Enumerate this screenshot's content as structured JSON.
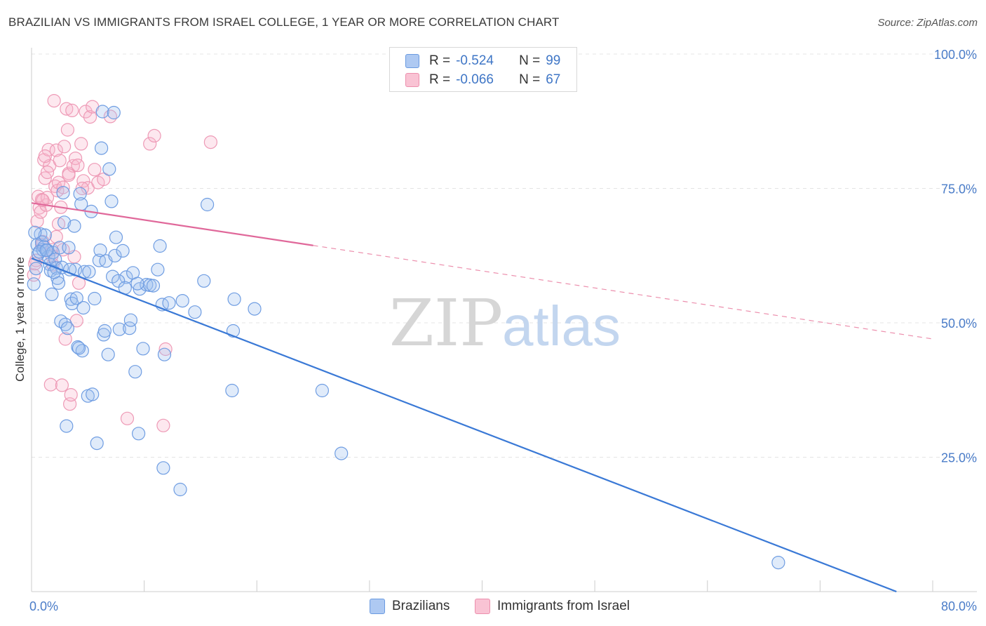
{
  "title": "BRAZILIAN VS IMMIGRANTS FROM ISRAEL COLLEGE, 1 YEAR OR MORE CORRELATION CHART",
  "source": "Source: ZipAtlas.com",
  "watermark": {
    "zip": "ZIP",
    "atlas": "atlas"
  },
  "legend": {
    "r_label": "R =",
    "n_label": "N =",
    "series": [
      {
        "name": "Brazilians",
        "r": "-0.524",
        "n": "99",
        "fill": "#aec9f2",
        "stroke": "#6a9ae0"
      },
      {
        "name": "Immigrants from Israel",
        "r": "-0.066",
        "n": "67",
        "fill": "#f9c3d4",
        "stroke": "#ec8fad"
      }
    ]
  },
  "chart_data": {
    "type": "scatter",
    "title": "BRAZILIAN VS IMMIGRANTS FROM ISRAEL COLLEGE, 1 YEAR OR MORE CORRELATION CHART",
    "xlabel": "",
    "ylabel": "College, 1 year or more",
    "xlim": [
      0,
      80
    ],
    "ylim": [
      0,
      100
    ],
    "x_tick_labels": [
      "0.0%",
      "80.0%"
    ],
    "y_tick_labels": [
      {
        "value": 100,
        "label": "100.0%"
      },
      {
        "value": 75,
        "label": "75.0%"
      },
      {
        "value": 50,
        "label": "50.0%"
      },
      {
        "value": 25,
        "label": "25.0%"
      }
    ],
    "series": [
      {
        "name": "Brazilians",
        "color": "#5b8fde",
        "points": [
          [
            0.2,
            57.2
          ],
          [
            0.4,
            60.1
          ],
          [
            0.5,
            64.5
          ],
          [
            0.6,
            62.8
          ],
          [
            0.8,
            66.5
          ],
          [
            0.9,
            65.0
          ],
          [
            1.0,
            63.6
          ],
          [
            1.1,
            64.1
          ],
          [
            1.2,
            66.3
          ],
          [
            1.4,
            63.5
          ],
          [
            1.5,
            62.3
          ],
          [
            1.6,
            60.9
          ],
          [
            1.7,
            59.7
          ],
          [
            1.8,
            55.3
          ],
          [
            1.9,
            63.1
          ],
          [
            2.1,
            61.8
          ],
          [
            2.2,
            60.2
          ],
          [
            2.3,
            58.3
          ],
          [
            2.4,
            57.4
          ],
          [
            2.5,
            64.0
          ],
          [
            2.6,
            50.3
          ],
          [
            2.7,
            60.3
          ],
          [
            2.8,
            74.2
          ],
          [
            2.9,
            68.7
          ],
          [
            3.0,
            49.7
          ],
          [
            3.1,
            30.8
          ],
          [
            3.2,
            49.0
          ],
          [
            3.3,
            64.0
          ],
          [
            3.5,
            54.4
          ],
          [
            3.6,
            53.6
          ],
          [
            3.8,
            68.0
          ],
          [
            3.9,
            59.9
          ],
          [
            4.0,
            54.6
          ],
          [
            4.1,
            45.5
          ],
          [
            4.3,
            74.0
          ],
          [
            4.4,
            72.1
          ],
          [
            4.5,
            44.8
          ],
          [
            4.6,
            52.8
          ],
          [
            4.7,
            59.5
          ],
          [
            5.0,
            36.4
          ],
          [
            5.3,
            70.7
          ],
          [
            5.4,
            36.7
          ],
          [
            5.6,
            54.5
          ],
          [
            5.8,
            27.6
          ],
          [
            6.0,
            61.6
          ],
          [
            6.2,
            82.5
          ],
          [
            6.3,
            89.3
          ],
          [
            6.4,
            47.8
          ],
          [
            6.5,
            48.5
          ],
          [
            6.6,
            61.5
          ],
          [
            6.8,
            44.1
          ],
          [
            6.9,
            78.6
          ],
          [
            7.1,
            72.6
          ],
          [
            7.2,
            58.6
          ],
          [
            7.3,
            89.1
          ],
          [
            7.4,
            62.5
          ],
          [
            7.5,
            65.9
          ],
          [
            7.8,
            48.8
          ],
          [
            8.1,
            63.4
          ],
          [
            8.4,
            58.5
          ],
          [
            8.7,
            49.0
          ],
          [
            8.8,
            50.5
          ],
          [
            9.0,
            59.3
          ],
          [
            9.2,
            40.9
          ],
          [
            9.5,
            29.4
          ],
          [
            9.6,
            56.3
          ],
          [
            9.9,
            45.2
          ],
          [
            10.2,
            57.1
          ],
          [
            10.5,
            57.0
          ],
          [
            11.2,
            59.9
          ],
          [
            11.4,
            64.3
          ],
          [
            11.6,
            53.4
          ],
          [
            11.7,
            23.0
          ],
          [
            11.8,
            44.1
          ],
          [
            13.2,
            19.0
          ],
          [
            13.4,
            54.1
          ],
          [
            14.5,
            52.0
          ],
          [
            15.3,
            57.8
          ],
          [
            15.6,
            72.0
          ],
          [
            17.8,
            37.4
          ],
          [
            17.9,
            48.5
          ],
          [
            18.0,
            54.4
          ],
          [
            19.8,
            52.6
          ],
          [
            25.8,
            37.4
          ],
          [
            27.5,
            25.7
          ],
          [
            66.3,
            5.4
          ],
          [
            0.3,
            66.8
          ],
          [
            0.7,
            63.2
          ],
          [
            1.3,
            63.5
          ],
          [
            2.0,
            59.4
          ],
          [
            3.4,
            59.9
          ],
          [
            4.2,
            45.3
          ],
          [
            5.1,
            59.5
          ],
          [
            6.1,
            63.5
          ],
          [
            7.7,
            57.8
          ],
          [
            8.3,
            56.5
          ],
          [
            9.4,
            57.3
          ],
          [
            10.8,
            56.9
          ],
          [
            12.2,
            53.7
          ]
        ]
      },
      {
        "name": "Immigrants from Israel",
        "color": "#ec8fad",
        "points": [
          [
            0.2,
            58.9
          ],
          [
            0.4,
            61.6
          ],
          [
            0.5,
            68.9
          ],
          [
            0.6,
            73.5
          ],
          [
            0.7,
            71.4
          ],
          [
            0.8,
            70.6
          ],
          [
            0.9,
            72.9
          ],
          [
            1.0,
            65.1
          ],
          [
            1.1,
            80.3
          ],
          [
            1.2,
            76.9
          ],
          [
            1.3,
            71.9
          ],
          [
            1.4,
            73.3
          ],
          [
            1.5,
            82.2
          ],
          [
            1.6,
            79.2
          ],
          [
            1.7,
            38.5
          ],
          [
            1.8,
            63.6
          ],
          [
            1.9,
            60.8
          ],
          [
            2.0,
            91.3
          ],
          [
            2.1,
            75.4
          ],
          [
            2.2,
            82.1
          ],
          [
            2.3,
            74.6
          ],
          [
            2.4,
            76.1
          ],
          [
            2.5,
            80.2
          ],
          [
            2.6,
            71.5
          ],
          [
            2.7,
            38.4
          ],
          [
            2.8,
            75.2
          ],
          [
            2.9,
            82.8
          ],
          [
            3.0,
            47.0
          ],
          [
            3.1,
            89.8
          ],
          [
            3.2,
            85.9
          ],
          [
            3.3,
            77.8
          ],
          [
            3.4,
            34.9
          ],
          [
            3.5,
            36.6
          ],
          [
            3.6,
            89.5
          ],
          [
            3.7,
            79.2
          ],
          [
            3.8,
            62.3
          ],
          [
            3.9,
            80.6
          ],
          [
            4.0,
            50.4
          ],
          [
            4.1,
            79.3
          ],
          [
            4.2,
            57.4
          ],
          [
            4.4,
            83.3
          ],
          [
            4.6,
            76.4
          ],
          [
            4.8,
            89.3
          ],
          [
            5.0,
            75.1
          ],
          [
            5.2,
            88.3
          ],
          [
            5.4,
            90.2
          ],
          [
            5.6,
            78.5
          ],
          [
            5.9,
            76.1
          ],
          [
            6.4,
            76.7
          ],
          [
            7.0,
            88.4
          ],
          [
            8.5,
            32.2
          ],
          [
            10.5,
            83.3
          ],
          [
            10.9,
            84.8
          ],
          [
            11.7,
            30.9
          ],
          [
            11.9,
            45.1
          ],
          [
            15.9,
            83.6
          ],
          [
            1.0,
            72.8
          ],
          [
            1.2,
            81.0
          ],
          [
            2.2,
            66.0
          ],
          [
            0.3,
            61.0
          ],
          [
            0.9,
            64.5
          ],
          [
            1.8,
            62.5
          ],
          [
            2.8,
            63.6
          ],
          [
            3.3,
            77.5
          ],
          [
            4.5,
            75.0
          ],
          [
            1.4,
            78.0
          ],
          [
            2.4,
            68.4
          ]
        ]
      }
    ],
    "trendlines": [
      {
        "series": "Brazilians",
        "x": [
          0,
          80
        ],
        "y": [
          62.0,
          -2.6
        ],
        "style": "solid",
        "solid_to": 69.0
      },
      {
        "series": "Immigrants from Israel",
        "x": [
          0,
          80
        ],
        "y": [
          72.3,
          47.0
        ],
        "style": "dashed",
        "solid_to": 25.0
      }
    ],
    "grid": true
  }
}
